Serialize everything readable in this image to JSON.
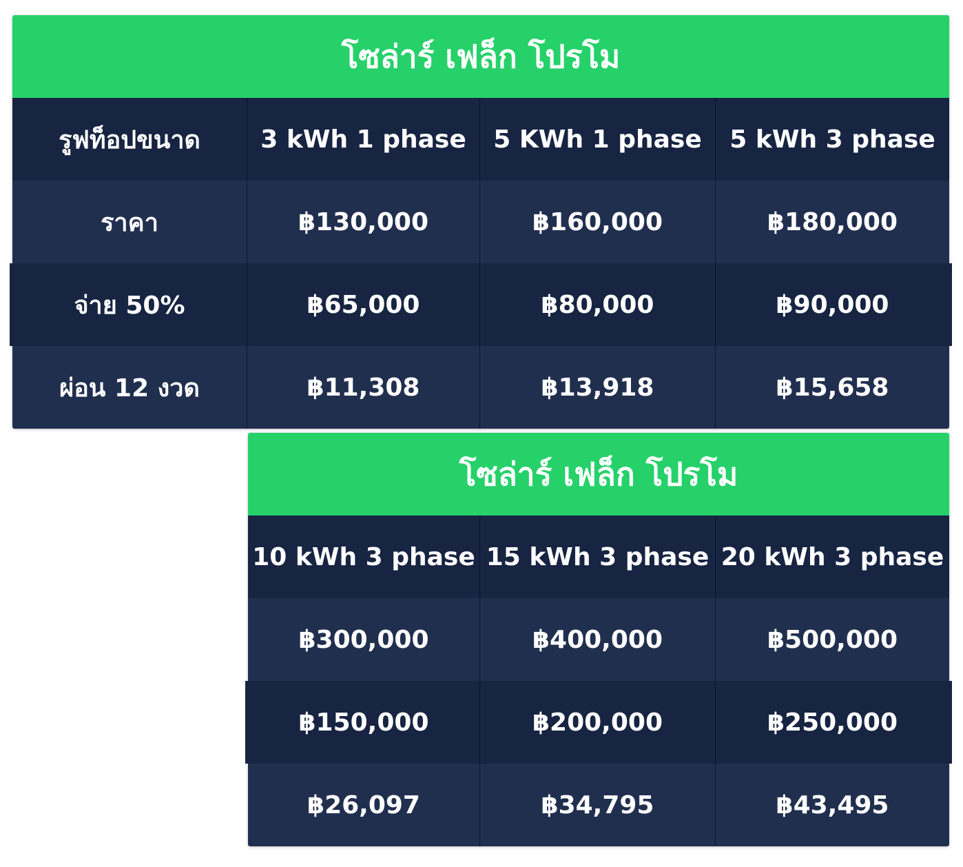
{
  "table1": {
    "title": "โซล่าร์ เฟล็ก โปรโม",
    "header": [
      "รูฟท็อปขนาด",
      "3 kWh 1 phase",
      "5 KWh 1 phase",
      "5 kWh 3 phase"
    ],
    "rows": [
      [
        "ราคา",
        "฿130,000",
        "฿160,000",
        "฿180,000"
      ],
      [
        "จ่าย 50%",
        "฿65,000",
        "฿80,000",
        "฿90,000"
      ],
      [
        "ผ่อน 12 งวด",
        "฿11,308",
        "฿13,918",
        "฿15,658"
      ]
    ]
  },
  "table2": {
    "title": "โซล่าร์ เฟล็ก โปรโม",
    "header": [
      "10 kWh 3 phase",
      "15 kWh 3 phase",
      "20 kWh 3 phase"
    ],
    "rows": [
      [
        "฿300,000",
        "฿400,000",
        "฿500,000"
      ],
      [
        "฿150,000",
        "฿200,000",
        "฿250,000"
      ],
      [
        "฿26,097",
        "฿34,795",
        "฿43,495"
      ]
    ]
  },
  "colors": {
    "title_green": "#26d16a",
    "row_dark": "#172442",
    "row_mid": "#212f4f",
    "text": "#ffffff"
  }
}
